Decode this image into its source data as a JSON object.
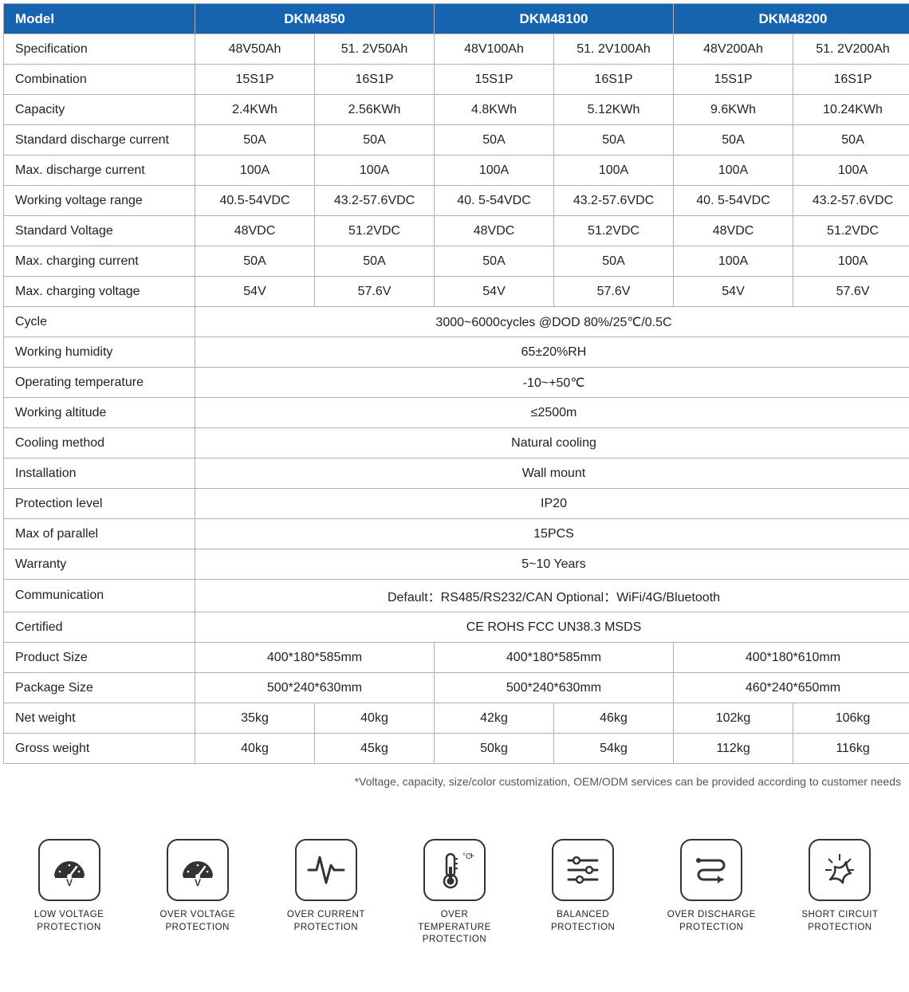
{
  "colors": {
    "header_bg": "#1663b0",
    "header_text": "#ffffff",
    "border": "#b0b0b0",
    "text": "#222222",
    "footnote": "#555555",
    "icon_stroke": "#333333"
  },
  "header": {
    "model_label": "Model",
    "models": [
      "DKM4850",
      "DKM48100",
      "DKM48200"
    ]
  },
  "rows6": [
    {
      "label": "Specification",
      "cells": [
        "48V50Ah",
        "51. 2V50Ah",
        "48V100Ah",
        "51. 2V100Ah",
        "48V200Ah",
        "51. 2V200Ah"
      ]
    },
    {
      "label": "Combination",
      "cells": [
        "15S1P",
        "16S1P",
        "15S1P",
        "16S1P",
        "15S1P",
        "16S1P"
      ]
    },
    {
      "label": "Capacity",
      "cells": [
        "2.4KWh",
        "2.56KWh",
        "4.8KWh",
        "5.12KWh",
        "9.6KWh",
        "10.24KWh"
      ]
    },
    {
      "label": "Standard discharge current",
      "cells": [
        "50A",
        "50A",
        "50A",
        "50A",
        "50A",
        "50A"
      ]
    },
    {
      "label": "Max. discharge current",
      "cells": [
        "100A",
        "100A",
        "100A",
        "100A",
        "100A",
        "100A"
      ]
    },
    {
      "label": "Working voltage range",
      "cells": [
        "40.5-54VDC",
        "43.2-57.6VDC",
        "40. 5-54VDC",
        "43.2-57.6VDC",
        "40. 5-54VDC",
        "43.2-57.6VDC"
      ]
    },
    {
      "label": "Standard Voltage",
      "cells": [
        "48VDC",
        "51.2VDC",
        "48VDC",
        "51.2VDC",
        "48VDC",
        "51.2VDC"
      ]
    },
    {
      "label": "Max. charging current",
      "cells": [
        "50A",
        "50A",
        "50A",
        "50A",
        "100A",
        "100A"
      ]
    },
    {
      "label": "Max. charging voltage",
      "cells": [
        "54V",
        "57.6V",
        "54V",
        "57.6V",
        "54V",
        "57.6V"
      ]
    }
  ],
  "rowsSpan": [
    {
      "label": "Cycle",
      "value": "3000~6000cycles @DOD 80%/25℃/0.5C"
    },
    {
      "label": "Working humidity",
      "value": "65±20%RH"
    },
    {
      "label": "Operating temperature",
      "value": "-10~+50℃"
    },
    {
      "label": "Working altitude",
      "value": "≤2500m"
    },
    {
      "label": "Cooling method",
      "value": "Natural cooling"
    },
    {
      "label": "Installation",
      "value": "Wall mount"
    },
    {
      "label": "Protection level",
      "value": "IP20"
    },
    {
      "label": "Max of parallel",
      "value": "15PCS"
    },
    {
      "label": "Warranty",
      "value": "5~10 Years"
    },
    {
      "label": "Communication",
      "value": "Default：RS485/RS232/CAN  Optional：WiFi/4G/Bluetooth"
    },
    {
      "label": "Certified",
      "value": "CE ROHS FCC UN38.3 MSDS"
    }
  ],
  "rows3": [
    {
      "label": "Product Size",
      "cells": [
        "400*180*585mm",
        "400*180*585mm",
        "400*180*610mm"
      ]
    },
    {
      "label": "Package Size",
      "cells": [
        "500*240*630mm",
        "500*240*630mm",
        "460*240*650mm"
      ]
    }
  ],
  "rows6b": [
    {
      "label": "Net weight",
      "cells": [
        "35kg",
        "40kg",
        "42kg",
        "46kg",
        "102kg",
        "106kg"
      ]
    },
    {
      "label": "Gross weight",
      "cells": [
        "40kg",
        "45kg",
        "50kg",
        "54kg",
        "112kg",
        "116kg"
      ]
    }
  ],
  "footnote": "*Voltage, capacity, size/color customization, OEM/ODM services can be provided according to customer needs",
  "icons": [
    {
      "id": "low-voltage-protection-icon",
      "label1": "LOW VOLTAGE",
      "label2": "PROTECTION",
      "svg": "gauge"
    },
    {
      "id": "over-voltage-protection-icon",
      "label1": "OVER VOLTAGE",
      "label2": "PROTECTION",
      "svg": "gauge"
    },
    {
      "id": "over-current-protection-icon",
      "label1": "OVER CURRENT",
      "label2": "PROTECTION",
      "svg": "pulse"
    },
    {
      "id": "over-temperature-protection-icon",
      "label1": "OVER TEMPERATURE",
      "label2": "PROTECTION",
      "svg": "thermo"
    },
    {
      "id": "balanced-protection-icon",
      "label1": "BALANCED",
      "label2": "PROTECTION",
      "svg": "sliders"
    },
    {
      "id": "over-discharge-protection-icon",
      "label1": "OVER DISCHARGE",
      "label2": "PROTECTION",
      "svg": "spath"
    },
    {
      "id": "short-circuit-protection-icon",
      "label1": "SHORT CIRCUIT",
      "label2": "PROTECTION",
      "svg": "spark"
    }
  ]
}
